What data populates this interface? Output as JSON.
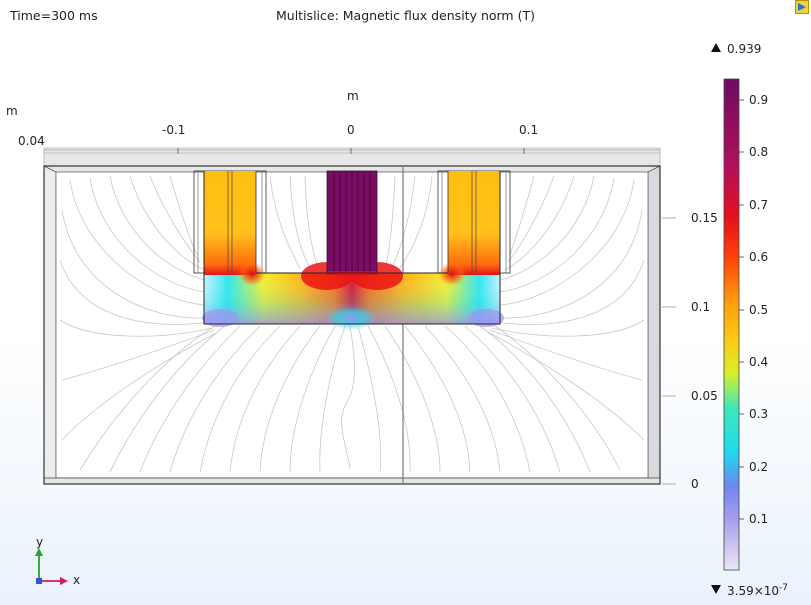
{
  "header": {
    "time_label": "Time=300 ms",
    "plot_title": "Multislice: Magnetic flux density norm (T)"
  },
  "axes": {
    "x_unit": "m",
    "z_unit": "m",
    "x_ticks": [
      "-0.1",
      "0",
      "0.1"
    ],
    "z_tick": "0.04",
    "y_ticks": [
      "0.15",
      "0.1",
      "0.05",
      "0"
    ],
    "triad_y": "y",
    "triad_x": "x"
  },
  "colorbar": {
    "max_label": "0.939",
    "min_label": "3.59×10",
    "min_exp": "-7",
    "ticks": [
      "0.9",
      "0.8",
      "0.7",
      "0.6",
      "0.5",
      "0.4",
      "0.3",
      "0.2",
      "0.1"
    ],
    "colormap": "Prism",
    "colors": [
      "#e3d9f5",
      "#8a8fe8",
      "#1fd9ef",
      "#63e7a8",
      "#e8ef2a",
      "#ffbf12",
      "#ff7a0a",
      "#ed0f18",
      "#b0105e",
      "#6b0d63"
    ]
  },
  "toolbar": {
    "corner_icon": "graphics-window-icon"
  }
}
